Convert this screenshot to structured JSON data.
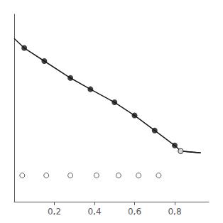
{
  "chart_data": {
    "type": "line",
    "xlim": [
      0.0,
      0.97
    ],
    "ylim": [
      0.0,
      1.0
    ],
    "xticks": [
      {
        "value": 0.2,
        "label": "0,2"
      },
      {
        "value": 0.4,
        "label": "0,4"
      },
      {
        "value": 0.6,
        "label": "0,6"
      },
      {
        "value": 0.8,
        "label": "0,8"
      }
    ],
    "yticks": [],
    "tick_labels": "x",
    "grid": false,
    "series": [
      {
        "type": "line",
        "color": "#1a1a1a",
        "x": [
          0.0,
          0.05,
          0.15,
          0.28,
          0.38,
          0.5,
          0.6,
          0.7,
          0.8,
          0.83,
          0.93
        ],
        "values": [
          0.87,
          0.82,
          0.75,
          0.66,
          0.6,
          0.53,
          0.46,
          0.38,
          0.3,
          0.27,
          0.26
        ]
      },
      {
        "type": "line",
        "color": "#1a1a1a",
        "x": [
          0.83,
          0.93
        ],
        "values": [
          0.27,
          0.26
        ]
      },
      {
        "type": "scatter",
        "color": "#111111",
        "marker": "circle",
        "x": [
          0.05,
          0.15,
          0.28,
          0.38,
          0.5,
          0.6,
          0.7,
          0.8,
          0.83
        ],
        "values": [
          0.82,
          0.75,
          0.66,
          0.6,
          0.53,
          0.46,
          0.38,
          0.3,
          0.27
        ]
      },
      {
        "type": "scatter",
        "color": "#333333",
        "marker": "open_circle",
        "x": [
          0.04,
          0.16,
          0.28,
          0.41,
          0.52,
          0.62,
          0.72,
          0.83
        ],
        "values": [
          0.14,
          0.14,
          0.14,
          0.14,
          0.14,
          0.14,
          0.14,
          0.27
        ]
      }
    ]
  }
}
